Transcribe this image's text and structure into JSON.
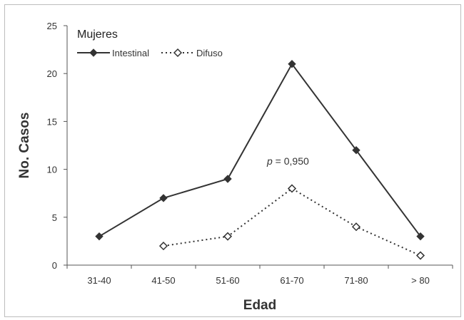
{
  "chart_data": {
    "type": "line",
    "title": "",
    "xlabel": "Edad",
    "ylabel": "No. Casos",
    "categories": [
      "31-40",
      "41-50",
      "51-60",
      "61-70",
      "71-80",
      "> 80"
    ],
    "ylim": [
      0,
      25
    ],
    "yticks": [
      0,
      5,
      10,
      15,
      20,
      25
    ],
    "grid": false,
    "legend": {
      "title": "Mujeres",
      "placement": "top-left",
      "entries": [
        "Intestinal",
        "Difuso"
      ]
    },
    "series": [
      {
        "name": "Intestinal",
        "values": [
          3,
          7,
          9,
          21,
          12,
          3
        ],
        "style": "solid",
        "marker": "filled-diamond",
        "color": "#333333"
      },
      {
        "name": "Difuso",
        "values": [
          null,
          2,
          3,
          8,
          4,
          1
        ],
        "style": "dotted",
        "marker": "open-diamond",
        "color": "#333333"
      }
    ],
    "annotations": [
      {
        "italic": "p",
        "text": " = 0,950"
      }
    ]
  }
}
